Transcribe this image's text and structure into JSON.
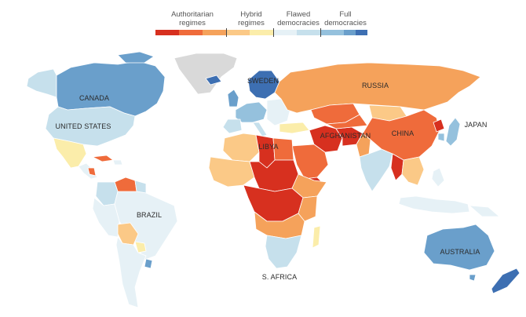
{
  "legend": {
    "categories": [
      {
        "label_line1": "Authoritarian",
        "label_line2": "regimes"
      },
      {
        "label_line1": "Hybrid",
        "label_line2": "regimes"
      },
      {
        "label_line1": "Flawed",
        "label_line2": "democracies"
      },
      {
        "label_line1": "Full",
        "label_line2": "democracies"
      }
    ],
    "swatches": [
      "#d7301f",
      "#ef6b3b",
      "#f5a25b",
      "#fbc987",
      "#fbedaa",
      "#e6f1f6",
      "#c6e0ec",
      "#95c1dd",
      "#6a9fcb",
      "#3d6fb2"
    ]
  },
  "colors": {
    "auth_dark": "#d7301f",
    "auth": "#ef6b3b",
    "hybrid_dark": "#f5a25b",
    "hybrid": "#fbc987",
    "hybrid_light": "#fbedaa",
    "flawed_light": "#e6f1f6",
    "flawed": "#c6e0ec",
    "flawed_dark": "#95c1dd",
    "full": "#6a9fcb",
    "full_dark": "#3d6fb2",
    "no_data": "#d9d9d9"
  },
  "labels": {
    "canada": "CANADA",
    "united_states": "UNITED STATES",
    "brazil": "BRAZIL",
    "russia": "RUSSIA",
    "sweden": "SWEDEN",
    "libya": "LIBYA",
    "afghanistan": "AFGHANISTAN",
    "china": "CHINA",
    "japan": "JAPAN",
    "australia": "AUSTRALIA",
    "s_africa": "S. AFRICA"
  }
}
